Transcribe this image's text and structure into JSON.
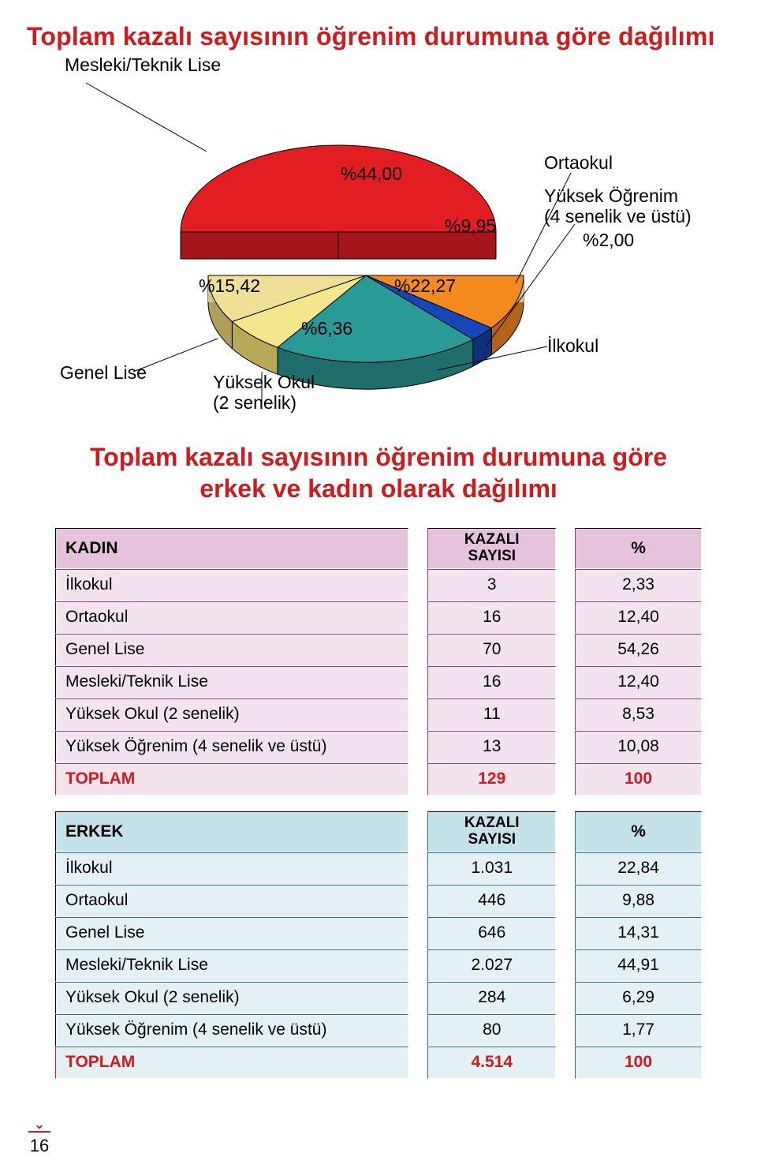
{
  "title": "Toplam kazalı sayısının öğrenim durumuna göre dağılımı",
  "subtitle_line1": "Toplam kazalı sayısının öğrenim durumuna göre",
  "subtitle_line2": "erkek ve kadın olarak dağılımı",
  "page_number": "16",
  "chart": {
    "type": "pie-3d-exploded",
    "background_color": "#ffffff",
    "label_fontsize": 23,
    "pct_fontsize": 23,
    "stroke": "#000000",
    "slices": [
      {
        "label": "Mesleki/Teknik Lise",
        "pct_text": "%44,00",
        "color_top": "#e21e23",
        "color_side": "#a5161a",
        "exploded": true
      },
      {
        "label": "Ortaokul",
        "pct_text": "%9,95",
        "color_top": "#f28a1f",
        "color_side": "#b4641a"
      },
      {
        "label": "Yüksek Öğrenim (4 senelik ve üstü)",
        "pct_text": "%2,00",
        "color_top": "#1646b8",
        "color_side": "#0e2f7c"
      },
      {
        "label": "İlkokul",
        "pct_text": "%22,27",
        "color_top": "#2a9a96",
        "color_side": "#1f6e6b"
      },
      {
        "label": "Yüksek Okul (2 senelik)",
        "pct_text": "%6,36",
        "color_top": "#f2e78d",
        "color_side": "#b7aa56"
      },
      {
        "label": "Genel Lise",
        "pct_text": "%15,42",
        "color_top": "#efdf97",
        "color_side": "#b09d5a"
      }
    ]
  },
  "tables": {
    "kadin": {
      "head_label": "KADIN",
      "head_val": "KAZALI SAYISI",
      "head_pct": "%",
      "head_bg": "#e6c3dd",
      "body_bg": "#f3e3ef",
      "border": "#8d3f87",
      "rows": [
        {
          "label": "İlkokul",
          "val": "3",
          "pct": "2,33"
        },
        {
          "label": "Ortaokul",
          "val": "16",
          "pct": "12,40"
        },
        {
          "label": "Genel Lise",
          "val": "70",
          "pct": "54,26"
        },
        {
          "label": "Mesleki/Teknik Lise",
          "val": "16",
          "pct": "12,40"
        },
        {
          "label": "Yüksek Okul (2 senelik)",
          "val": "11",
          "pct": "8,53"
        },
        {
          "label": "Yüksek Öğrenim (4 senelik ve üstü)",
          "val": "13",
          "pct": "10,08"
        }
      ],
      "total": {
        "label": "TOPLAM",
        "val": "129",
        "pct": "100"
      }
    },
    "erkek": {
      "head_label": "ERKEK",
      "head_val": "KAZALI SAYISI",
      "head_pct": "%",
      "head_bg": "#c5e1e9",
      "body_bg": "#e4f1f4",
      "border": "#2f6f8c",
      "rows": [
        {
          "label": "İlkokul",
          "val": "1.031",
          "pct": "22,84"
        },
        {
          "label": "Ortaokul",
          "val": "446",
          "pct": "9,88"
        },
        {
          "label": "Genel Lise",
          "val": "646",
          "pct": "14,31"
        },
        {
          "label": "Mesleki/Teknik Lise",
          "val": "2.027",
          "pct": "44,91"
        },
        {
          "label": "Yüksek Okul (2 senelik)",
          "val": "284",
          "pct": "6,29"
        },
        {
          "label": "Yüksek Öğrenim (4 senelik ve üstü)",
          "val": "80",
          "pct": "1,77"
        }
      ],
      "total": {
        "label": "TOPLAM",
        "val": "4.514",
        "pct": "100"
      }
    }
  }
}
